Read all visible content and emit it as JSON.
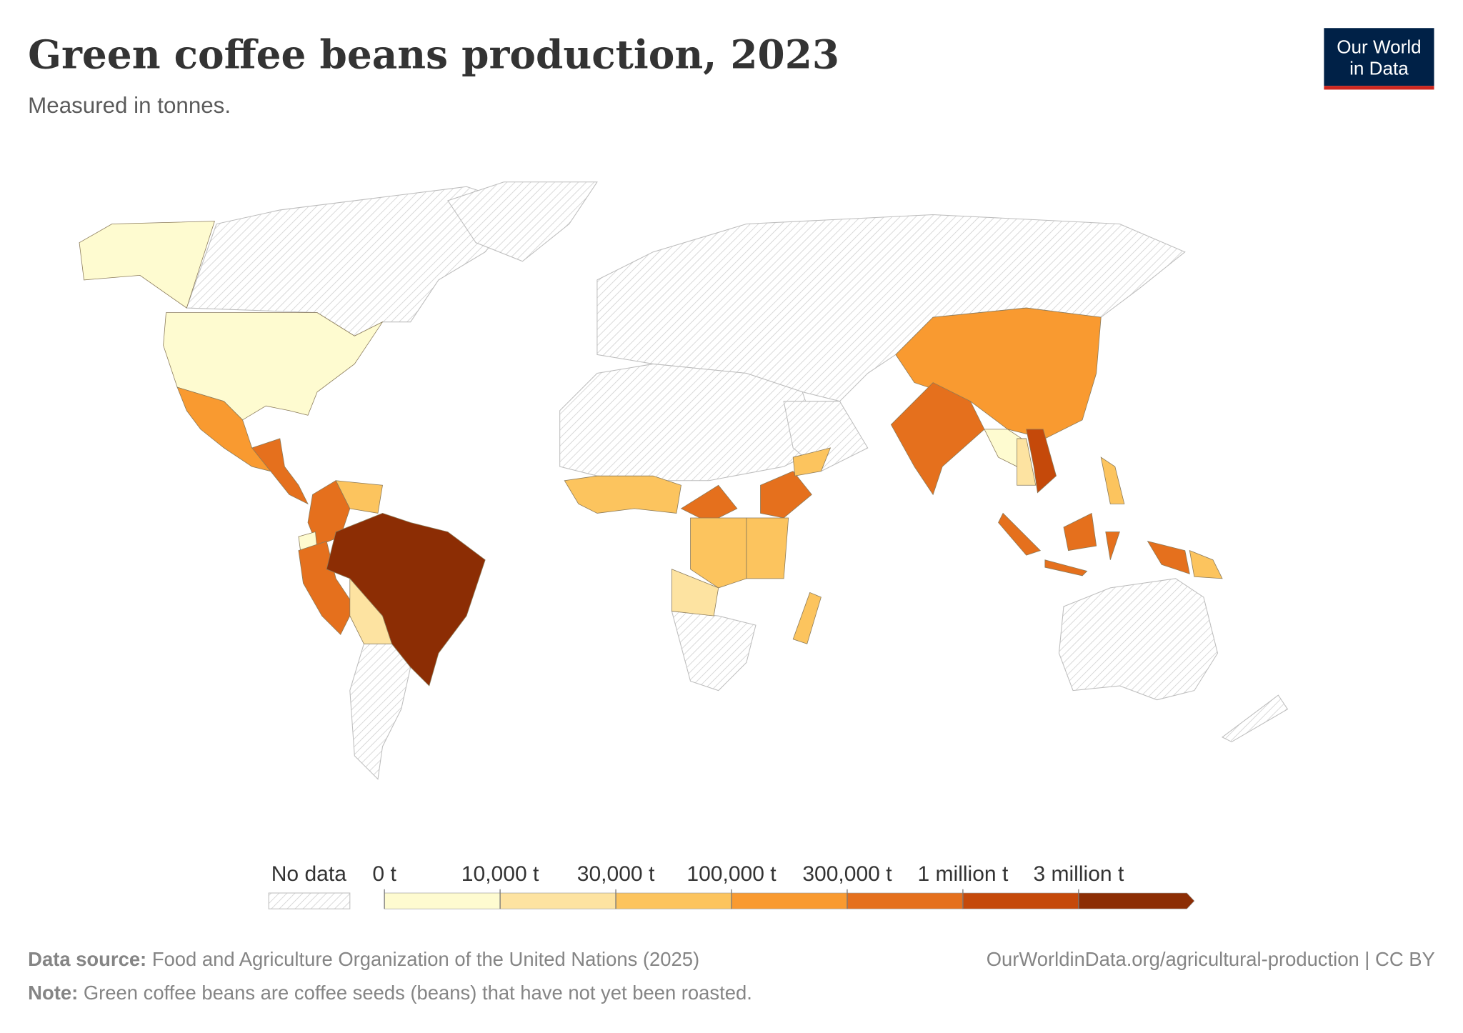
{
  "title": "Green coffee beans production, 2023",
  "subtitle": "Measured in tonnes.",
  "logo": [
    "Our World",
    "in Data"
  ],
  "chart_data": {
    "type": "choropleth",
    "legend": {
      "no_data": "No data",
      "ticks": [
        {
          "value": 0,
          "label": "0 t"
        },
        {
          "value": 10000,
          "label": "10,000 t"
        },
        {
          "value": 30000,
          "label": "30,000 t"
        },
        {
          "value": 100000,
          "label": "100,000 t"
        },
        {
          "value": 300000,
          "label": "300,000 t"
        },
        {
          "value": 1000000,
          "label": "1 million t"
        },
        {
          "value": 3000000,
          "label": "3 million t"
        }
      ],
      "colors": [
        "#fefbd0",
        "#fde3a1",
        "#fcc45e",
        "#f99a30",
        "#e5701d",
        "#c5490a",
        "#8c2d04"
      ]
    }
  },
  "footer": {
    "source_label": "Data source:",
    "source": "Food and Agriculture Organization of the United Nations (2025)",
    "url": "OurWorldinData.org/agricultural-production | CC BY",
    "note_label": "Note:",
    "note": "Green coffee beans are coffee seeds (beans) that have not yet been roasted."
  }
}
